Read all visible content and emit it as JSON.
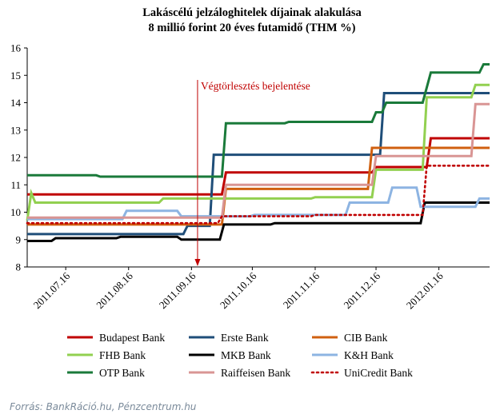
{
  "chart_data": {
    "type": "line",
    "title": "Lakáscélú jelzáloghitelek díjainak alakulása",
    "subtitle": "8 millió forint 20 éves futamidő (THM %)",
    "ylim": [
      8,
      16
    ],
    "yticks": [
      "8",
      "9",
      "10",
      "11",
      "12",
      "13",
      "14",
      "15",
      "16"
    ],
    "xlim": [
      "2011-06-27",
      "2012-02-10"
    ],
    "xticks": [
      {
        "date": "2011-07-16",
        "label": "2011.07.16"
      },
      {
        "date": "2011-08-16",
        "label": "2011.08.16"
      },
      {
        "date": "2011-09-16",
        "label": "2011.09.16"
      },
      {
        "date": "2011-10-16",
        "label": "2011.10.16"
      },
      {
        "date": "2011-11-16",
        "label": "2011.11.16"
      },
      {
        "date": "2011-12-16",
        "label": "2011.12.16"
      },
      {
        "date": "2012-01-16",
        "label": "2012.01.16"
      }
    ],
    "grid": false,
    "annotation": {
      "label": "Végtörlesztés bejelentése",
      "date": "2011-09-19",
      "color": "#c00000"
    },
    "series": [
      {
        "name": "Budapest Bank",
        "color": "#c00000",
        "dash": "solid",
        "points": [
          [
            "2011-06-27",
            10.65
          ],
          [
            "2011-10-01",
            10.65
          ],
          [
            "2011-10-03",
            11.45
          ],
          [
            "2011-12-14",
            11.45
          ],
          [
            "2011-12-16",
            11.65
          ],
          [
            "2012-01-10",
            11.65
          ],
          [
            "2012-01-12",
            12.7
          ],
          [
            "2012-02-10",
            12.7
          ]
        ]
      },
      {
        "name": "Erste Bank",
        "color": "#1f4e79",
        "dash": "solid",
        "points": [
          [
            "2011-06-27",
            9.2
          ],
          [
            "2011-09-12",
            9.2
          ],
          [
            "2011-09-14",
            9.5
          ],
          [
            "2011-09-25",
            9.5
          ],
          [
            "2011-09-27",
            12.1
          ],
          [
            "2011-12-18",
            12.1
          ],
          [
            "2011-12-20",
            14.35
          ],
          [
            "2012-02-10",
            14.35
          ]
        ]
      },
      {
        "name": "CIB Bank",
        "color": "#d06010",
        "dash": "solid",
        "points": [
          [
            "2011-06-27",
            9.55
          ],
          [
            "2011-10-01",
            9.55
          ],
          [
            "2011-10-03",
            10.85
          ],
          [
            "2011-12-12",
            10.85
          ],
          [
            "2011-12-14",
            12.35
          ],
          [
            "2012-02-10",
            12.35
          ]
        ]
      },
      {
        "name": "FHB Bank",
        "color": "#92d050",
        "dash": "solid",
        "points": [
          [
            "2011-06-27",
            9.7
          ],
          [
            "2011-06-29",
            10.7
          ],
          [
            "2011-07-01",
            10.35
          ],
          [
            "2011-08-31",
            10.35
          ],
          [
            "2011-09-02",
            10.5
          ],
          [
            "2011-11-14",
            10.5
          ],
          [
            "2011-11-16",
            10.55
          ],
          [
            "2011-12-14",
            10.55
          ],
          [
            "2011-12-16",
            11.55
          ],
          [
            "2012-01-08",
            11.55
          ],
          [
            "2012-01-10",
            14.2
          ],
          [
            "2012-02-01",
            14.2
          ],
          [
            "2012-02-03",
            14.65
          ],
          [
            "2012-02-10",
            14.65
          ]
        ]
      },
      {
        "name": "MKB Bank",
        "color": "#000000",
        "dash": "solid",
        "points": [
          [
            "2011-06-27",
            8.95
          ],
          [
            "2011-07-09",
            8.95
          ],
          [
            "2011-07-11",
            9.05
          ],
          [
            "2011-08-10",
            9.05
          ],
          [
            "2011-08-12",
            9.1
          ],
          [
            "2011-09-09",
            9.1
          ],
          [
            "2011-09-11",
            9.0
          ],
          [
            "2011-09-30",
            9.0
          ],
          [
            "2011-10-02",
            9.55
          ],
          [
            "2011-10-25",
            9.55
          ],
          [
            "2011-10-27",
            9.6
          ],
          [
            "2012-01-07",
            9.6
          ],
          [
            "2012-01-09",
            10.35
          ],
          [
            "2012-02-10",
            10.35
          ]
        ]
      },
      {
        "name": "K&H Bank",
        "color": "#8db4e2",
        "dash": "solid",
        "points": [
          [
            "2011-06-27",
            9.75
          ],
          [
            "2011-08-13",
            9.75
          ],
          [
            "2011-08-15",
            10.05
          ],
          [
            "2011-09-09",
            10.05
          ],
          [
            "2011-09-11",
            9.85
          ],
          [
            "2011-10-15",
            9.85
          ],
          [
            "2011-10-17",
            9.9
          ],
          [
            "2011-12-01",
            9.9
          ],
          [
            "2011-12-03",
            10.35
          ],
          [
            "2011-12-22",
            10.35
          ],
          [
            "2011-12-24",
            10.9
          ],
          [
            "2012-01-05",
            10.9
          ],
          [
            "2012-01-07",
            10.2
          ],
          [
            "2012-02-03",
            10.2
          ],
          [
            "2012-02-05",
            10.5
          ],
          [
            "2012-02-10",
            10.5
          ]
        ]
      },
      {
        "name": "OTP Bank",
        "color": "#1a7a3a",
        "dash": "solid",
        "points": [
          [
            "2011-06-27",
            11.35
          ],
          [
            "2011-07-31",
            11.35
          ],
          [
            "2011-08-02",
            11.3
          ],
          [
            "2011-10-01",
            11.3
          ],
          [
            "2011-10-03",
            13.25
          ],
          [
            "2011-11-01",
            13.25
          ],
          [
            "2011-11-03",
            13.3
          ],
          [
            "2011-12-14",
            13.3
          ],
          [
            "2011-12-16",
            13.65
          ],
          [
            "2011-12-19",
            13.65
          ],
          [
            "2011-12-21",
            14.0
          ],
          [
            "2012-01-08",
            14.0
          ],
          [
            "2012-01-10",
            14.55
          ],
          [
            "2012-01-12",
            15.1
          ],
          [
            "2012-02-05",
            15.1
          ],
          [
            "2012-02-07",
            15.4
          ],
          [
            "2012-02-10",
            15.4
          ]
        ]
      },
      {
        "name": "Raiffeisen Bank",
        "color": "#d99594",
        "dash": "solid",
        "points": [
          [
            "2011-06-27",
            9.8
          ],
          [
            "2011-10-01",
            9.8
          ],
          [
            "2011-10-03",
            11.0
          ],
          [
            "2011-12-14",
            11.0
          ],
          [
            "2011-12-16",
            12.05
          ],
          [
            "2012-02-01",
            12.05
          ],
          [
            "2012-02-03",
            13.95
          ],
          [
            "2012-02-10",
            13.95
          ]
        ]
      },
      {
        "name": "UniCredit Bank",
        "color": "#c00000",
        "dash": "dotted",
        "points": [
          [
            "2011-06-27",
            9.6
          ],
          [
            "2011-09-29",
            9.6
          ],
          [
            "2011-10-01",
            9.85
          ],
          [
            "2011-11-14",
            9.85
          ],
          [
            "2011-11-16",
            9.9
          ],
          [
            "2012-01-08",
            9.9
          ],
          [
            "2012-01-10",
            11.7
          ],
          [
            "2012-02-10",
            11.7
          ]
        ]
      }
    ],
    "legend_position": "bottom"
  },
  "source": "Forrás: BankRáció.hu, Pénzcentrum.hu"
}
